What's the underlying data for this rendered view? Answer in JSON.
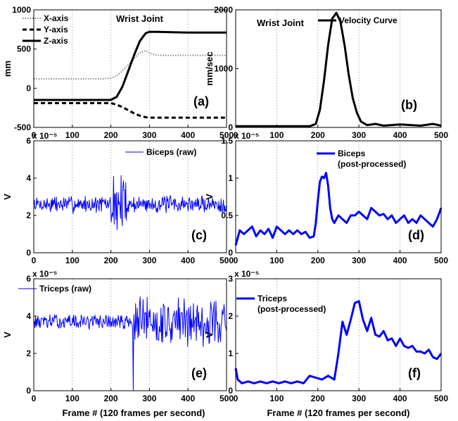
{
  "figure": {
    "xlabel_bottom": "Frame # (120 frames per second)"
  },
  "chart_data": [
    {
      "id": "a",
      "type": "line",
      "panel_label": "(a)",
      "title": "Wrist Joint",
      "ylabel": "mm",
      "xlim": [
        0,
        500
      ],
      "ylim": [
        -500,
        1000
      ],
      "xticks": [
        0,
        100,
        200,
        300,
        400,
        500
      ],
      "yticks": [
        -500,
        0,
        500,
        1000
      ],
      "exponent": "",
      "series": [
        {
          "name": "X-axis",
          "style": "dotted",
          "color": "#888888",
          "width": 2,
          "x": [
            0,
            180,
            200,
            215,
            230,
            245,
            260,
            275,
            290,
            305,
            320,
            340,
            500
          ],
          "y": [
            120,
            120,
            130,
            160,
            220,
            300,
            380,
            450,
            480,
            440,
            420,
            420,
            420
          ]
        },
        {
          "name": "Y-axis",
          "style": "dashed",
          "color": "#000000",
          "width": 3,
          "x": [
            0,
            200,
            215,
            230,
            245,
            260,
            275,
            290,
            300,
            320,
            500
          ],
          "y": [
            -190,
            -190,
            -210,
            -240,
            -280,
            -320,
            -350,
            -370,
            -375,
            -375,
            -375
          ]
        },
        {
          "name": "Z-axis",
          "style": "solid",
          "color": "#000000",
          "width": 3,
          "x": [
            0,
            200,
            215,
            230,
            245,
            260,
            275,
            290,
            300,
            320,
            400,
            500
          ],
          "y": [
            -150,
            -150,
            -110,
            20,
            220,
            420,
            600,
            700,
            720,
            720,
            710,
            710
          ]
        }
      ]
    },
    {
      "id": "b",
      "type": "line",
      "panel_label": "(b)",
      "title": "Wrist Joint",
      "ylabel": "mm/sec",
      "xlim": [
        0,
        500
      ],
      "ylim": [
        0,
        2000
      ],
      "xticks": [
        0,
        100,
        200,
        300,
        400,
        500
      ],
      "yticks": [
        0,
        1000,
        2000
      ],
      "exponent": "",
      "series": [
        {
          "name": "Velocity Curve",
          "style": "solid",
          "color": "#000000",
          "width": 3,
          "x": [
            0,
            100,
            180,
            195,
            205,
            215,
            225,
            235,
            245,
            255,
            265,
            275,
            285,
            295,
            305,
            320,
            340,
            360,
            400,
            450,
            480,
            500
          ],
          "y": [
            20,
            20,
            20,
            60,
            300,
            800,
            1400,
            1850,
            1950,
            1800,
            1400,
            900,
            500,
            250,
            100,
            40,
            60,
            30,
            50,
            30,
            60,
            30
          ]
        }
      ]
    },
    {
      "id": "c",
      "type": "line",
      "panel_label": "(c)",
      "title": "",
      "ylabel": "V",
      "xlim": [
        0,
        500
      ],
      "ylim": [
        0,
        6
      ],
      "xticks": [
        0,
        100,
        200,
        300,
        400,
        500
      ],
      "yticks": [
        0,
        2,
        4,
        6
      ],
      "exponent": "x 10⁻⁵",
      "noise": {
        "base": 2.6,
        "quiet_amp": 0.35,
        "burst_start": 200,
        "burst_end": 240,
        "burst_amp": 1.3,
        "seed": 7
      },
      "series": [
        {
          "name": "Biceps (raw)",
          "style": "solid",
          "color": "#0000ff",
          "width": 1
        }
      ]
    },
    {
      "id": "d",
      "type": "line",
      "panel_label": "(d)",
      "title": "",
      "ylabel": "V",
      "xlim": [
        0,
        500
      ],
      "ylim": [
        0,
        1.5
      ],
      "xticks": [
        0,
        100,
        200,
        300,
        400,
        500
      ],
      "yticks": [
        0,
        0.5,
        1,
        1.5
      ],
      "exponent": "x 10⁻⁵",
      "series": [
        {
          "name": "Biceps\n(post-processed)",
          "style": "solid",
          "color": "#0000ff",
          "width": 3,
          "x": [
            0,
            10,
            20,
            30,
            40,
            50,
            60,
            70,
            80,
            90,
            100,
            110,
            120,
            130,
            140,
            150,
            160,
            170,
            180,
            190,
            195,
            200,
            205,
            210,
            215,
            220,
            225,
            230,
            235,
            240,
            250,
            260,
            270,
            280,
            290,
            300,
            310,
            320,
            330,
            340,
            350,
            360,
            370,
            380,
            390,
            400,
            410,
            420,
            430,
            440,
            450,
            460,
            470,
            480,
            490,
            500
          ],
          "y": [
            0.1,
            0.3,
            0.25,
            0.3,
            0.35,
            0.22,
            0.3,
            0.25,
            0.32,
            0.2,
            0.35,
            0.3,
            0.25,
            0.3,
            0.25,
            0.3,
            0.25,
            0.28,
            0.2,
            0.22,
            0.4,
            0.7,
            0.95,
            1.02,
            1.0,
            1.07,
            0.9,
            0.6,
            0.45,
            0.4,
            0.5,
            0.45,
            0.4,
            0.5,
            0.5,
            0.55,
            0.5,
            0.45,
            0.6,
            0.55,
            0.5,
            0.52,
            0.45,
            0.5,
            0.4,
            0.45,
            0.5,
            0.4,
            0.45,
            0.4,
            0.5,
            0.45,
            0.4,
            0.35,
            0.45,
            0.6
          ]
        }
      ]
    },
    {
      "id": "e",
      "type": "line",
      "panel_label": "(e)",
      "title": "",
      "ylabel": "V",
      "xlim": [
        0,
        500
      ],
      "ylim": [
        0,
        6
      ],
      "xticks": [
        0,
        100,
        200,
        300,
        400,
        500
      ],
      "yticks": [
        0,
        2,
        4,
        6
      ],
      "exponent": "x 10⁻⁵",
      "noise": {
        "base": 3.7,
        "quiet_amp": 0.3,
        "burst_start": 255,
        "burst_end": 500,
        "burst_amp": 1.0,
        "seed": 13,
        "spike_x": 258,
        "spike_y": 0
      },
      "series": [
        {
          "name": "Triceps (raw)",
          "style": "solid",
          "color": "#0000ff",
          "width": 1
        }
      ]
    },
    {
      "id": "f",
      "type": "line",
      "panel_label": "(f)",
      "title": "",
      "ylabel": "V",
      "xlim": [
        0,
        500
      ],
      "ylim": [
        0,
        3
      ],
      "xticks": [
        0,
        100,
        200,
        300,
        400,
        500
      ],
      "yticks": [
        0,
        1,
        2,
        3
      ],
      "exponent": "x 10⁻⁵",
      "series": [
        {
          "name": "Triceps\n(post-processed)",
          "style": "solid",
          "color": "#0000ff",
          "width": 3,
          "x": [
            0,
            5,
            15,
            30,
            45,
            60,
            75,
            90,
            105,
            120,
            135,
            150,
            165,
            180,
            195,
            210,
            225,
            240,
            250,
            260,
            270,
            280,
            290,
            300,
            310,
            320,
            330,
            340,
            350,
            360,
            370,
            380,
            390,
            400,
            410,
            420,
            430,
            440,
            450,
            460,
            470,
            480,
            490,
            500
          ],
          "y": [
            0.6,
            0.3,
            0.2,
            0.25,
            0.2,
            0.25,
            0.2,
            0.25,
            0.2,
            0.25,
            0.2,
            0.25,
            0.2,
            0.4,
            0.35,
            0.3,
            0.4,
            0.3,
            1.0,
            1.85,
            1.5,
            1.9,
            2.35,
            2.4,
            1.9,
            1.6,
            1.95,
            1.5,
            1.45,
            1.6,
            1.35,
            1.4,
            1.2,
            1.4,
            1.2,
            1.15,
            1.2,
            1.05,
            1.05,
            1.0,
            1.1,
            0.9,
            0.85,
            1.0
          ]
        }
      ]
    }
  ]
}
